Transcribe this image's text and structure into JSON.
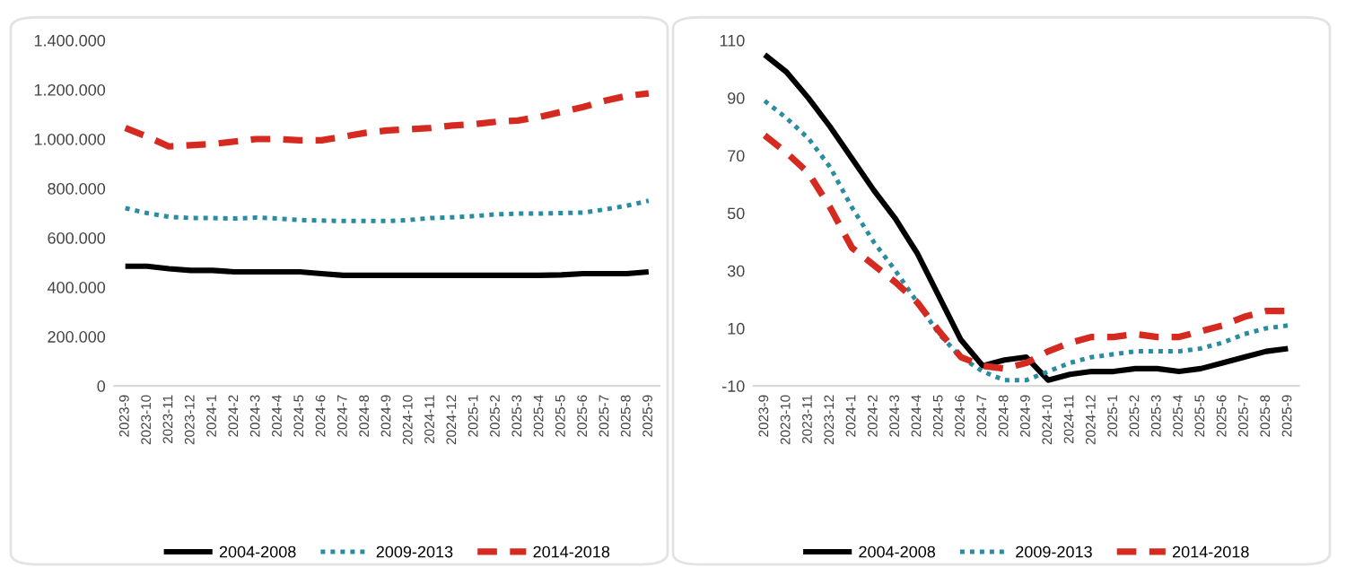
{
  "chart_data": [
    {
      "type": "line",
      "categories": [
        "2023-9",
        "2023-10",
        "2023-11",
        "2023-12",
        "2024-1",
        "2024-2",
        "2024-3",
        "2024-4",
        "2024-5",
        "2024-6",
        "2024-7",
        "2024-8",
        "2024-9",
        "2024-10",
        "2024-11",
        "2024-12",
        "2025-1",
        "2025-2",
        "2025-3",
        "2025-4",
        "2025-5",
        "2025-6",
        "2025-7",
        "2025-8",
        "2025-9"
      ],
      "series": [
        {
          "name": "2004-2008",
          "color": "#000000",
          "line_style": "solid",
          "values": [
            485000,
            485000,
            475000,
            468000,
            468000,
            462000,
            462000,
            462000,
            462000,
            455000,
            448000,
            448000,
            448000,
            448000,
            448000,
            448000,
            448000,
            448000,
            448000,
            448000,
            450000,
            455000,
            455000,
            455000,
            462000
          ]
        },
        {
          "name": "2009-2013",
          "color": "#2a8ca0",
          "line_style": "dotted",
          "values": [
            720000,
            700000,
            685000,
            680000,
            680000,
            678000,
            682000,
            678000,
            672000,
            670000,
            668000,
            668000,
            668000,
            672000,
            680000,
            683000,
            688000,
            695000,
            698000,
            698000,
            700000,
            702000,
            715000,
            730000,
            750000
          ]
        },
        {
          "name": "2014-2018",
          "color": "#d42a20",
          "line_style": "dashed",
          "values": [
            1045000,
            1010000,
            970000,
            975000,
            980000,
            990000,
            1000000,
            1000000,
            995000,
            995000,
            1010000,
            1025000,
            1035000,
            1040000,
            1045000,
            1055000,
            1060000,
            1070000,
            1075000,
            1090000,
            1110000,
            1130000,
            1155000,
            1175000,
            1185000
          ]
        }
      ],
      "ylim": [
        0,
        1400000
      ],
      "yticks": [
        0,
        {
          "value": 200000,
          "label": "200.000"
        },
        {
          "value": 400000,
          "label": "400.000"
        },
        {
          "value": 600000,
          "label": "600.000"
        },
        {
          "value": 800000,
          "label": "800.000"
        },
        {
          "value": 1000000,
          "label": "1.000.000"
        },
        {
          "value": 1200000,
          "label": "1.200.000"
        },
        {
          "value": 1400000,
          "label": "1.400.000"
        }
      ],
      "grid": false,
      "legend": "bottom"
    },
    {
      "type": "line",
      "categories": [
        "2023-9",
        "2023-10",
        "2023-11",
        "2023-12",
        "2024-1",
        "2024-2",
        "2024-3",
        "2024-4",
        "2024-5",
        "2024-6",
        "2024-7",
        "2024-8",
        "2024-9",
        "2024-10",
        "2024-11",
        "2024-12",
        "2025-1",
        "2025-2",
        "2025-3",
        "2025-4",
        "2025-5",
        "2025-6",
        "2025-7",
        "2025-8",
        "2025-9"
      ],
      "series": [
        {
          "name": "2004-2008",
          "color": "#000000",
          "line_style": "solid",
          "values": [
            105,
            99,
            90,
            80,
            69,
            58,
            48,
            36,
            21,
            6,
            -3,
            -1,
            0,
            -8,
            -6,
            -5,
            -5,
            -4,
            -4,
            -5,
            -4,
            -2,
            0,
            2,
            3
          ]
        },
        {
          "name": "2009-2013",
          "color": "#2a8ca0",
          "line_style": "dotted",
          "values": [
            89,
            83,
            76,
            66,
            52,
            40,
            30,
            19,
            8,
            0,
            -5,
            -8,
            -8,
            -5,
            -2,
            0,
            1,
            2,
            2,
            2,
            3,
            5,
            8,
            10,
            11
          ]
        },
        {
          "name": "2014-2018",
          "color": "#d42a20",
          "line_style": "dashed",
          "values": [
            77,
            71,
            64,
            52,
            38,
            32,
            26,
            19,
            9,
            0,
            -3,
            -4,
            -2,
            2,
            5,
            7,
            7,
            8,
            7,
            7,
            9,
            11,
            14,
            16,
            16
          ]
        }
      ],
      "ylim": [
        -10,
        110
      ],
      "yticks": [
        -10,
        10,
        30,
        50,
        70,
        90,
        110
      ],
      "grid": false,
      "legend": "bottom"
    }
  ]
}
